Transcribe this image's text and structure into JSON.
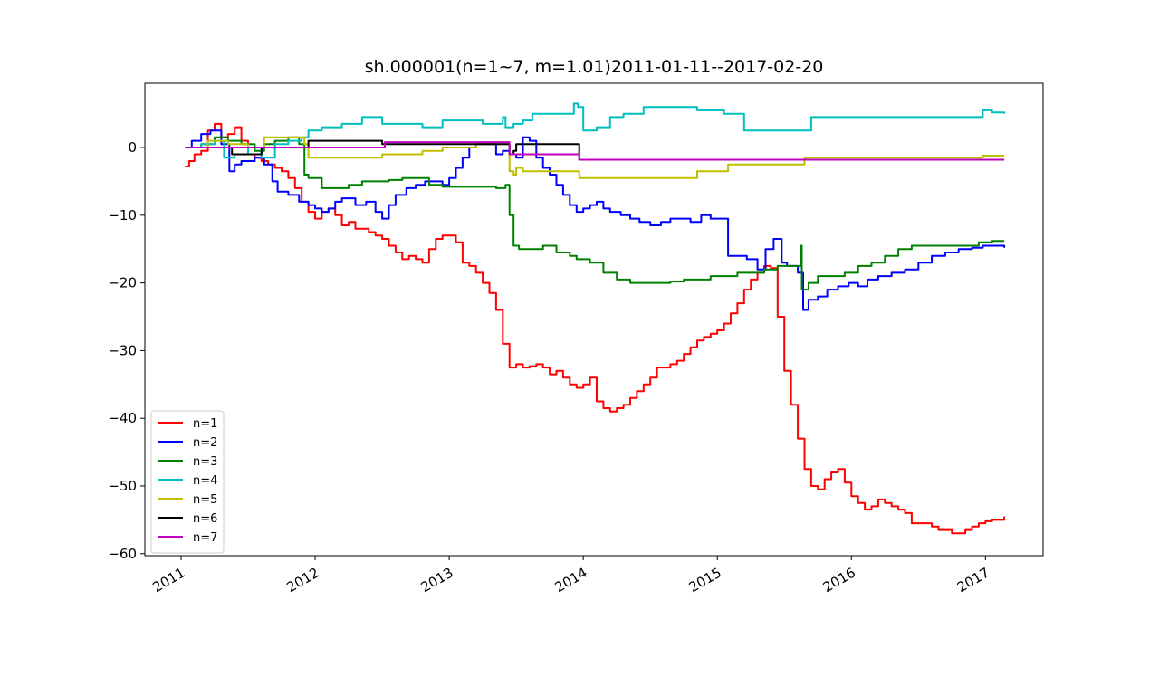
{
  "chart_data": {
    "type": "line",
    "title": "sh.000001(n=1~7, m=1.01)2011-01-11--2017-02-20",
    "xlabel": "",
    "ylabel": "",
    "xlim": [
      2010.73,
      2017.43
    ],
    "ylim": [
      -60.3,
      9.5
    ],
    "x_ticks": [
      2011,
      2012,
      2013,
      2014,
      2015,
      2016,
      2017
    ],
    "x_tick_labels": [
      "2011",
      "2012",
      "2013",
      "2014",
      "2015",
      "2016",
      "2017"
    ],
    "y_ticks": [
      0,
      -10,
      -20,
      -30,
      -40,
      -50,
      -60
    ],
    "y_tick_labels": [
      "0",
      "−10",
      "−20",
      "−30",
      "−40",
      "−50",
      "−60"
    ],
    "grid": false,
    "legend_position": "lower-left",
    "series": [
      {
        "name": "n=1",
        "color": "#ff0000",
        "x": [
          2011.03,
          2011.06,
          2011.1,
          2011.15,
          2011.2,
          2011.25,
          2011.3,
          2011.35,
          2011.4,
          2011.45,
          2011.5,
          2011.55,
          2011.6,
          2011.65,
          2011.7,
          2011.75,
          2011.8,
          2011.85,
          2011.9,
          2011.95,
          2012.0,
          2012.05,
          2012.1,
          2012.15,
          2012.2,
          2012.25,
          2012.3,
          2012.35,
          2012.4,
          2012.45,
          2012.5,
          2012.55,
          2012.6,
          2012.65,
          2012.7,
          2012.75,
          2012.8,
          2012.85,
          2012.9,
          2012.95,
          2013.0,
          2013.05,
          2013.1,
          2013.15,
          2013.2,
          2013.25,
          2013.3,
          2013.35,
          2013.4,
          2013.45,
          2013.5,
          2013.55,
          2013.6,
          2013.65,
          2013.7,
          2013.75,
          2013.8,
          2013.85,
          2013.9,
          2013.95,
          2014.0,
          2014.05,
          2014.1,
          2014.15,
          2014.2,
          2014.25,
          2014.3,
          2014.35,
          2014.4,
          2014.45,
          2014.5,
          2014.55,
          2014.6,
          2014.65,
          2014.7,
          2014.75,
          2014.8,
          2014.85,
          2014.9,
          2014.95,
          2015.0,
          2015.05,
          2015.1,
          2015.15,
          2015.2,
          2015.25,
          2015.3,
          2015.35,
          2015.4,
          2015.45,
          2015.5,
          2015.55,
          2015.6,
          2015.65,
          2015.7,
          2015.75,
          2015.8,
          2015.85,
          2015.9,
          2015.95,
          2016.0,
          2016.05,
          2016.1,
          2016.15,
          2016.2,
          2016.25,
          2016.3,
          2016.35,
          2016.4,
          2016.45,
          2016.5,
          2016.55,
          2016.6,
          2016.65,
          2016.7,
          2016.75,
          2016.8,
          2016.85,
          2016.9,
          2016.95,
          2017.0,
          2017.05,
          2017.1,
          2017.14
        ],
        "y": [
          -2.8,
          -2.0,
          -1.0,
          -0.5,
          2.5,
          3.5,
          1.5,
          2.0,
          3.0,
          1.0,
          -1.0,
          -1.5,
          -2.0,
          -2.5,
          -3.0,
          -3.5,
          -4.5,
          -6.0,
          -8.0,
          -9.5,
          -10.5,
          -9.5,
          -9.0,
          -10.0,
          -11.5,
          -11.0,
          -12.0,
          -12.0,
          -12.5,
          -13.0,
          -13.5,
          -14.5,
          -15.5,
          -16.5,
          -16.0,
          -16.5,
          -17.0,
          -15.0,
          -13.5,
          -13.0,
          -13.0,
          -14.0,
          -17.0,
          -17.5,
          -18.5,
          -20.0,
          -21.5,
          -24.0,
          -29.0,
          -32.5,
          -32.0,
          -32.5,
          -32.3,
          -32.0,
          -32.5,
          -33.5,
          -33.0,
          -34.0,
          -35.0,
          -35.5,
          -35.0,
          -34.0,
          -37.5,
          -38.5,
          -39.0,
          -38.5,
          -38.0,
          -37.0,
          -36.0,
          -35.0,
          -34.0,
          -32.5,
          -32.5,
          -32.0,
          -31.5,
          -30.5,
          -29.5,
          -28.5,
          -28.0,
          -27.5,
          -27.0,
          -26.0,
          -24.5,
          -23.0,
          -21.0,
          -19.5,
          -18.5,
          -17.5,
          -17.8,
          -25.0,
          -33.0,
          -38.0,
          -43.0,
          -47.5,
          -50.0,
          -50.5,
          -49.0,
          -48.0,
          -47.5,
          -49.5,
          -51.5,
          -52.5,
          -53.5,
          -53.0,
          -52.0,
          -52.5,
          -53.0,
          -53.5,
          -54.0,
          -55.5,
          -55.5,
          -55.5,
          -56.0,
          -56.5,
          -56.5,
          -57.0,
          -57.0,
          -56.5,
          -56.0,
          -55.5,
          -55.2,
          -55.0,
          -55.0,
          -54.5
        ]
      },
      {
        "name": "n=2",
        "color": "#0000ff",
        "x": [
          2011.03,
          2011.08,
          2011.15,
          2011.22,
          2011.3,
          2011.36,
          2011.4,
          2011.45,
          2011.5,
          2011.55,
          2011.62,
          2011.68,
          2011.72,
          2011.8,
          2011.88,
          2011.95,
          2012.0,
          2012.05,
          2012.1,
          2012.15,
          2012.2,
          2012.3,
          2012.38,
          2012.45,
          2012.5,
          2012.55,
          2012.6,
          2012.68,
          2012.75,
          2012.82,
          2012.9,
          2012.95,
          2013.0,
          2013.05,
          2013.1,
          2013.15,
          2013.2,
          2013.25,
          2013.3,
          2013.35,
          2013.4,
          2013.45,
          2013.5,
          2013.55,
          2013.6,
          2013.65,
          2013.7,
          2013.75,
          2013.8,
          2013.85,
          2013.9,
          2013.95,
          2014.0,
          2014.05,
          2014.1,
          2014.15,
          2014.2,
          2014.28,
          2014.35,
          2014.42,
          2014.5,
          2014.58,
          2014.65,
          2014.72,
          2014.8,
          2014.88,
          2014.95,
          2015.0,
          2015.08,
          2015.15,
          2015.22,
          2015.3,
          2015.36,
          2015.42,
          2015.48,
          2015.52,
          2015.56,
          2015.6,
          2015.64,
          2015.68,
          2015.75,
          2015.82,
          2015.9,
          2015.98,
          2016.05,
          2016.12,
          2016.2,
          2016.3,
          2016.4,
          2016.5,
          2016.6,
          2016.7,
          2016.8,
          2016.9,
          2016.98,
          2017.05,
          2017.14
        ],
        "y": [
          0.0,
          1.0,
          2.0,
          2.5,
          0.5,
          -3.5,
          -2.5,
          -2.0,
          -2.0,
          -1.5,
          -2.5,
          -5.0,
          -6.5,
          -7.0,
          -8.0,
          -8.5,
          -9.0,
          -9.5,
          -9.0,
          -8.0,
          -7.5,
          -8.5,
          -8.0,
          -9.5,
          -10.5,
          -8.5,
          -7.0,
          -6.0,
          -5.5,
          -5.0,
          -5.0,
          -5.5,
          -4.5,
          -3.0,
          -1.5,
          0.0,
          0.5,
          0.5,
          0.5,
          -1.0,
          -0.5,
          -1.0,
          -1.5,
          1.5,
          1.0,
          -1.5,
          -3.0,
          -4.0,
          -5.5,
          -7.0,
          -8.5,
          -9.5,
          -9.0,
          -8.5,
          -8.0,
          -9.0,
          -9.5,
          -10.0,
          -10.5,
          -11.0,
          -11.5,
          -11.0,
          -10.5,
          -10.5,
          -11.0,
          -10.0,
          -10.5,
          -10.5,
          -16.0,
          -16.0,
          -16.5,
          -18.0,
          -15.0,
          -13.5,
          -17.0,
          -17.5,
          -17.5,
          -18.5,
          -24.0,
          -22.5,
          -22.0,
          -21.0,
          -20.5,
          -20.0,
          -20.5,
          -19.5,
          -19.0,
          -18.5,
          -18.0,
          -17.0,
          -16.0,
          -15.5,
          -15.0,
          -14.8,
          -14.5,
          -14.5,
          -14.8
        ]
      },
      {
        "name": "n=3",
        "color": "#008000",
        "x": [
          2011.03,
          2011.15,
          2011.25,
          2011.35,
          2011.45,
          2011.55,
          2011.62,
          2011.7,
          2011.8,
          2011.88,
          2011.92,
          2011.95,
          2012.05,
          2012.15,
          2012.25,
          2012.35,
          2012.45,
          2012.55,
          2012.65,
          2012.75,
          2012.85,
          2012.95,
          2013.05,
          2013.15,
          2013.25,
          2013.35,
          2013.42,
          2013.45,
          2013.48,
          2013.52,
          2013.6,
          2013.7,
          2013.8,
          2013.9,
          2013.95,
          2014.05,
          2014.15,
          2014.25,
          2014.35,
          2014.45,
          2014.55,
          2014.65,
          2014.75,
          2014.85,
          2014.95,
          2015.05,
          2015.15,
          2015.25,
          2015.35,
          2015.45,
          2015.52,
          2015.58,
          2015.62,
          2015.63,
          2015.68,
          2015.75,
          2015.85,
          2015.95,
          2016.05,
          2016.15,
          2016.25,
          2016.35,
          2016.45,
          2016.55,
          2016.65,
          2016.75,
          2016.85,
          2016.95,
          2017.05,
          2017.14
        ],
        "y": [
          0.0,
          0.5,
          1.5,
          1.0,
          0.5,
          -0.5,
          0.5,
          1.0,
          1.5,
          0.5,
          -4.0,
          -4.5,
          -6.0,
          -6.0,
          -5.5,
          -5.0,
          -5.0,
          -4.8,
          -4.5,
          -4.5,
          -5.5,
          -5.8,
          -5.8,
          -5.8,
          -5.8,
          -6.0,
          -5.5,
          -10.0,
          -14.5,
          -15.0,
          -15.0,
          -14.5,
          -15.5,
          -16.0,
          -16.5,
          -17.0,
          -18.5,
          -19.5,
          -20.0,
          -20.0,
          -20.0,
          -19.8,
          -19.5,
          -19.5,
          -19.0,
          -19.0,
          -18.5,
          -18.5,
          -18.0,
          -17.5,
          -17.5,
          -17.5,
          -14.5,
          -21.0,
          -20.0,
          -19.0,
          -19.0,
          -18.5,
          -17.5,
          -17.0,
          -16.0,
          -15.0,
          -14.5,
          -14.5,
          -14.5,
          -14.5,
          -14.5,
          -14.0,
          -13.8,
          -13.8
        ]
      },
      {
        "name": "n=4",
        "color": "#00bfbf",
        "x": [
          2011.03,
          2011.15,
          2011.25,
          2011.32,
          2011.4,
          2011.5,
          2011.6,
          2011.7,
          2011.8,
          2011.9,
          2011.95,
          2012.05,
          2012.2,
          2012.35,
          2012.5,
          2012.65,
          2012.8,
          2012.95,
          2013.1,
          2013.25,
          2013.4,
          2013.42,
          2013.48,
          2013.55,
          2013.62,
          2013.75,
          2013.9,
          2013.93,
          2013.96,
          2014.0,
          2014.1,
          2014.2,
          2014.3,
          2014.45,
          2014.6,
          2014.75,
          2014.85,
          2015.05,
          2015.2,
          2015.4,
          2015.55,
          2015.65,
          2015.7,
          2015.9,
          2016.1,
          2016.3,
          2016.5,
          2016.7,
          2016.9,
          2016.98,
          2017.05,
          2017.14
        ],
        "y": [
          0.0,
          0.5,
          1.0,
          -1.5,
          -1.0,
          0.0,
          -1.5,
          0.5,
          1.0,
          1.5,
          2.5,
          3.0,
          3.5,
          4.5,
          3.5,
          3.5,
          3.0,
          4.0,
          4.0,
          3.5,
          4.5,
          3.0,
          3.5,
          4.0,
          5.0,
          5.0,
          5.0,
          6.5,
          6.0,
          2.5,
          3.0,
          4.5,
          5.0,
          6.0,
          6.0,
          6.0,
          5.5,
          5.0,
          2.5,
          2.5,
          2.5,
          2.5,
          4.5,
          4.5,
          4.5,
          4.5,
          4.5,
          4.5,
          4.5,
          5.5,
          5.2,
          5.0
        ]
      },
      {
        "name": "n=5",
        "color": "#bfbf00",
        "x": [
          2011.03,
          2011.2,
          2011.35,
          2011.5,
          2011.62,
          2011.65,
          2011.8,
          2011.92,
          2011.95,
          2012.1,
          2012.3,
          2012.45,
          2012.5,
          2012.8,
          2012.95,
          2013.2,
          2013.4,
          2013.45,
          2013.48,
          2013.5,
          2013.55,
          2013.8,
          2013.95,
          2013.97,
          2014.3,
          2014.6,
          2014.8,
          2014.85,
          2015.05,
          2015.08,
          2015.4,
          2015.63,
          2015.65,
          2016.0,
          2016.5,
          2016.95,
          2016.98,
          2017.14
        ],
        "y": [
          0.0,
          1.0,
          0.5,
          0.0,
          1.5,
          1.5,
          1.5,
          0.5,
          -1.5,
          -1.5,
          -1.5,
          -1.5,
          -1.0,
          -0.5,
          0.0,
          0.5,
          0.5,
          -3.5,
          -4.0,
          -3.0,
          -3.5,
          -3.5,
          -3.5,
          -4.5,
          -4.5,
          -4.5,
          -4.5,
          -3.5,
          -3.5,
          -2.5,
          -2.5,
          -2.5,
          -1.5,
          -1.5,
          -1.5,
          -1.5,
          -1.2,
          -1.2
        ]
      },
      {
        "name": "n=6",
        "color": "#000000",
        "x": [
          2011.03,
          2011.2,
          2011.36,
          2011.38,
          2011.6,
          2011.94,
          2011.95,
          2012.3,
          2012.48,
          2012.5,
          2012.8,
          2013.0,
          2013.42,
          2013.45,
          2013.48,
          2013.5,
          2013.7,
          2013.96,
          2013.97,
          2014.5,
          2015.0,
          2015.6,
          2016.0,
          2016.5,
          2017.14
        ],
        "y": [
          0.0,
          0.0,
          0.0,
          -1.0,
          0.0,
          0.0,
          1.0,
          1.0,
          1.0,
          0.5,
          0.5,
          0.5,
          0.5,
          -1.0,
          -0.5,
          0.5,
          0.5,
          0.5,
          -1.8,
          -1.8,
          -1.8,
          -1.8,
          -1.8,
          -1.8,
          -1.8
        ]
      },
      {
        "name": "n=7",
        "color": "#bf00bf",
        "x": [
          2011.03,
          2011.5,
          2012.0,
          2012.5,
          2012.52,
          2013.0,
          2013.43,
          2013.45,
          2013.6,
          2013.96,
          2013.97,
          2014.5,
          2015.0,
          2015.6,
          2016.0,
          2016.5,
          2017.14
        ],
        "y": [
          0.0,
          0.0,
          0.0,
          0.0,
          0.8,
          0.8,
          0.8,
          -1.0,
          -1.0,
          -1.0,
          -1.8,
          -1.8,
          -1.8,
          -1.8,
          -1.8,
          -1.8,
          -1.8
        ]
      }
    ]
  }
}
